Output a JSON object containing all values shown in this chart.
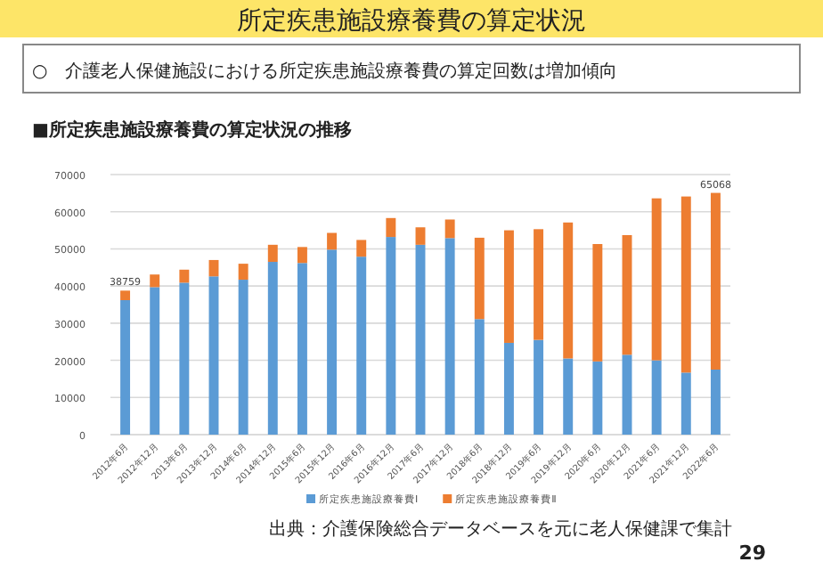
{
  "chart_data": {
    "type": "bar",
    "title": "所定疾患施設療養費の算定状況",
    "subtitle": "○　介護老人保健施設における所定疾患施設療養費の算定回数は増加傾向",
    "annotations": [
      "■所定疾患施設療養費の算定状況の推移",
      "出典：介護保険総合データベースを元に老人保健課で集計",
      "29"
    ],
    "categories": [
      "2012年6月",
      "2012年12月",
      "2013年6月",
      "2013年12月",
      "2014年6月",
      "2014年12月",
      "2015年6月",
      "2015年12月",
      "2016年6月",
      "2016年12月",
      "2017年6月",
      "2017年12月",
      "2018年6月",
      "2018年12月",
      "2019年6月",
      "2019年12月",
      "2020年6月",
      "2020年12月",
      "2021年6月",
      "2021年12月",
      "2022年6月"
    ],
    "stacked": true,
    "series": [
      {
        "name": "所定疾患施設療養費Ⅰ",
        "color": "#5b9bd5",
        "values": [
          36200,
          39700,
          40900,
          42600,
          41700,
          46500,
          46200,
          49800,
          47900,
          53200,
          51100,
          52900,
          31100,
          24700,
          25500,
          20500,
          19700,
          21500,
          20000,
          16700,
          17500
        ]
      },
      {
        "name": "所定疾患施設療養費Ⅱ",
        "color": "#ed7d31",
        "values": [
          2559,
          3400,
          3500,
          4400,
          4300,
          4600,
          4300,
          4500,
          4500,
          5100,
          4700,
          5000,
          21900,
          30300,
          29800,
          36600,
          31600,
          32200,
          43600,
          47400,
          47568
        ]
      }
    ],
    "totals": [
      "38759",
      null,
      null,
      null,
      null,
      null,
      null,
      null,
      null,
      null,
      null,
      null,
      null,
      null,
      null,
      null,
      null,
      null,
      null,
      null,
      "65068"
    ],
    "ylim": [
      0,
      70000
    ],
    "yticks": [
      0,
      10000,
      20000,
      30000,
      40000,
      50000,
      60000,
      70000
    ],
    "grid": "y",
    "legend": "bottom"
  }
}
